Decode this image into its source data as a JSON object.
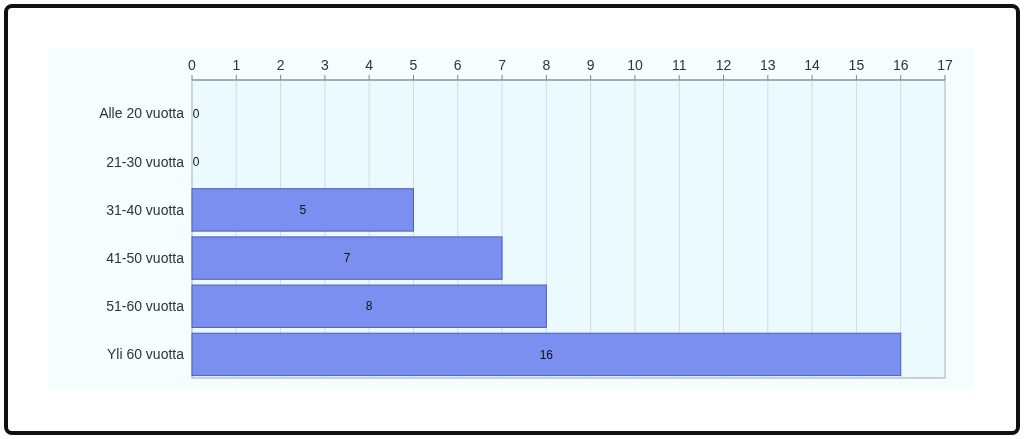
{
  "chart_data": {
    "type": "bar",
    "orientation": "horizontal",
    "categories": [
      "Alle 20 vuotta",
      "21-30 vuotta",
      "31-40 vuotta",
      "41-50 vuotta",
      "51-60 vuotta",
      "Yli 60 vuotta"
    ],
    "values": [
      0,
      0,
      5,
      7,
      8,
      16
    ],
    "color": "#7b8ff0",
    "xlim": [
      0,
      17
    ],
    "xticks": [
      0,
      1,
      2,
      3,
      4,
      5,
      6,
      7,
      8,
      9,
      10,
      11,
      12,
      13,
      14,
      15,
      16,
      17
    ],
    "grid": "x",
    "data_labels": true
  }
}
